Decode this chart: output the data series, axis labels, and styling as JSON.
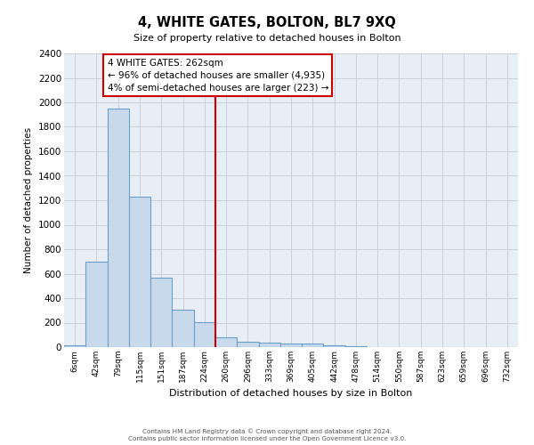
{
  "title": "4, WHITE GATES, BOLTON, BL7 9XQ",
  "subtitle": "Size of property relative to detached houses in Bolton",
  "xlabel": "Distribution of detached houses by size in Bolton",
  "ylabel": "Number of detached properties",
  "bar_labels": [
    "6sqm",
    "42sqm",
    "79sqm",
    "115sqm",
    "151sqm",
    "187sqm",
    "224sqm",
    "260sqm",
    "296sqm",
    "333sqm",
    "369sqm",
    "405sqm",
    "442sqm",
    "478sqm",
    "514sqm",
    "550sqm",
    "587sqm",
    "623sqm",
    "659sqm",
    "696sqm",
    "732sqm"
  ],
  "bar_values": [
    15,
    700,
    1950,
    1230,
    565,
    305,
    205,
    80,
    45,
    35,
    30,
    30,
    15,
    10,
    0,
    0,
    0,
    0,
    0,
    0,
    0
  ],
  "bar_color": "#c8d9ec",
  "bar_edge_color": "#6a9fc8",
  "vline_color": "#cc0000",
  "vline_x": 7,
  "annotation_text": "4 WHITE GATES: 262sqm\n← 96% of detached houses are smaller (4,935)\n4% of semi-detached houses are larger (223) →",
  "annotation_box_edge": "#cc0000",
  "ylim": [
    0,
    2400
  ],
  "yticks": [
    0,
    200,
    400,
    600,
    800,
    1000,
    1200,
    1400,
    1600,
    1800,
    2000,
    2200,
    2400
  ],
  "footer1": "Contains HM Land Registry data © Crown copyright and database right 2024.",
  "footer2": "Contains public sector information licensed under the Open Government Licence v3.0.",
  "background_color": "#ffffff",
  "grid_color": "#c8d0dc",
  "plot_bg_color": "#e8eef5"
}
